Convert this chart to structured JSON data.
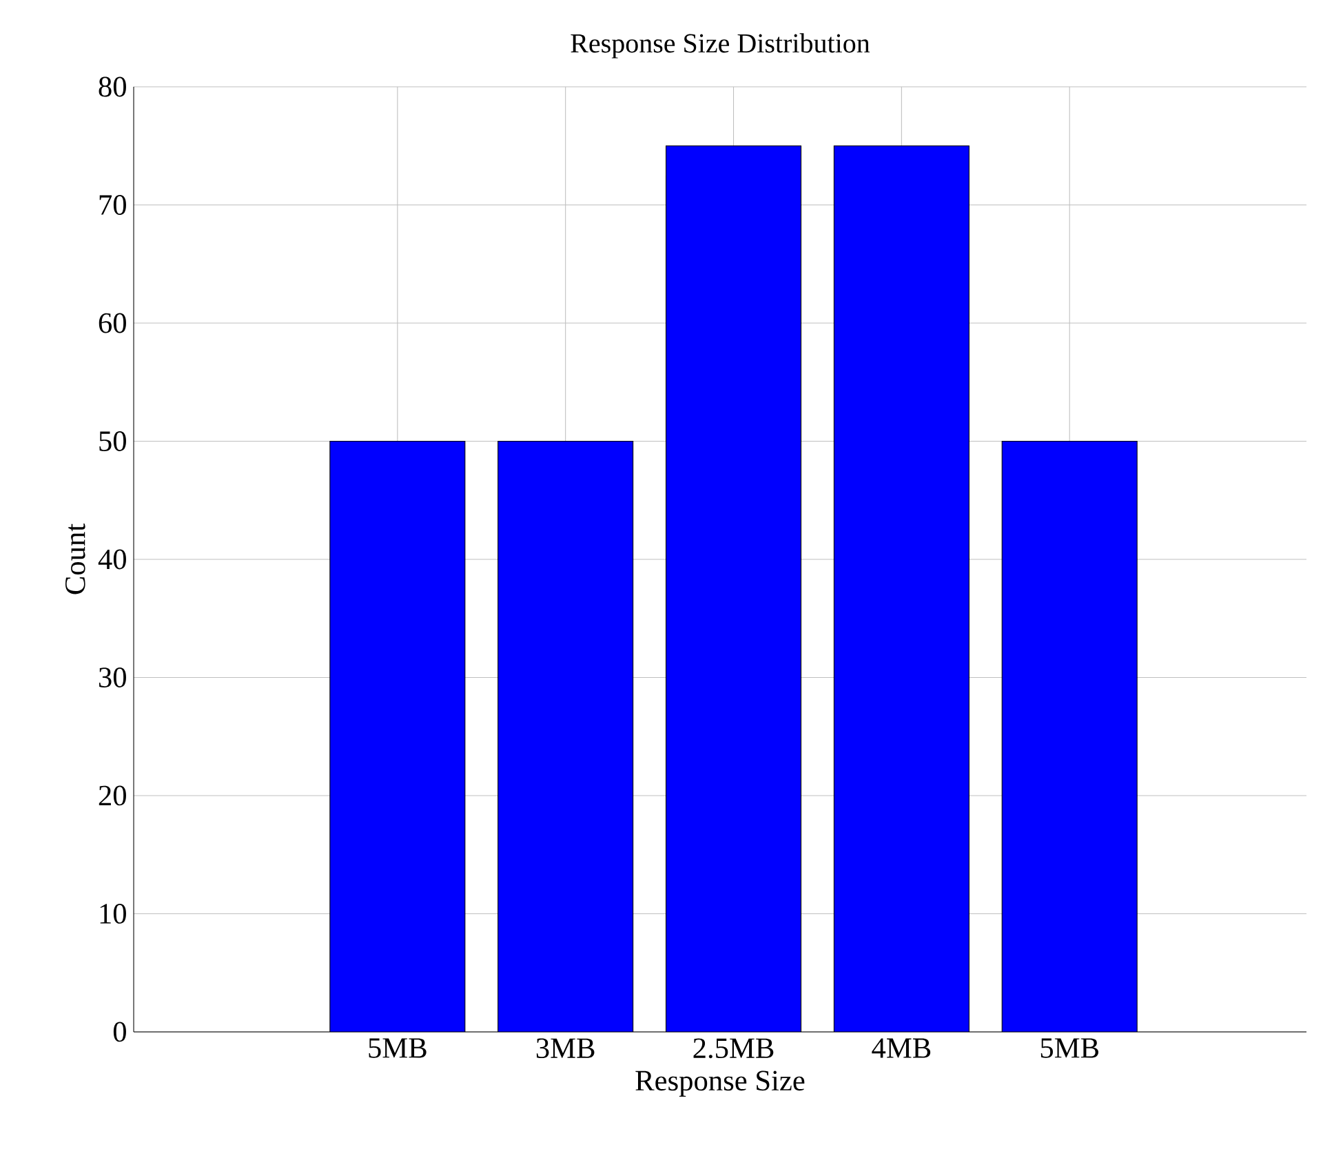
{
  "chart_data": {
    "type": "bar",
    "title": "Response Size Distribution",
    "xlabel": "Response Size",
    "ylabel": "Count",
    "categories": [
      "5MB",
      "3MB",
      "2.5MB",
      "4MB",
      "5MB"
    ],
    "values": [
      50,
      50,
      75,
      75,
      50
    ],
    "color": "#0000ff",
    "ylim": [
      0,
      80
    ],
    "yticks": [
      0,
      10,
      20,
      30,
      40,
      50,
      60,
      70,
      80
    ],
    "grid": true
  }
}
